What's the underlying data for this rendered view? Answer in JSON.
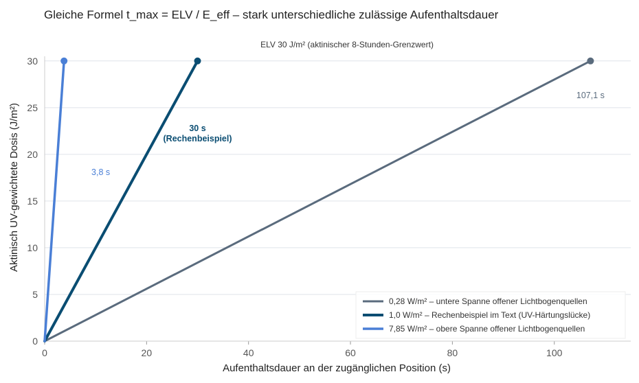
{
  "chart_data": {
    "type": "line",
    "title": "Gleiche Formel t_max = ELV / E_eff – stark unterschiedliche zulässige Aufenthaltsdauer",
    "subtitle": "ELV 30 J/m² (aktinischer 8-Stunden-Grenzwert)",
    "xlabel": "Aufenthaltsdauer an der zugänglichen Position (s)",
    "ylabel": "Aktinisch UV-gewichtete Dosis (J/m²)",
    "xlim": [
      0,
      115
    ],
    "ylim": [
      0,
      30.5
    ],
    "xticks": [
      0,
      20,
      40,
      60,
      80,
      100
    ],
    "yticks": [
      0,
      5,
      10,
      15,
      20,
      25,
      30
    ],
    "grid": "horizontal",
    "legend_position": "bottom-right",
    "series": [
      {
        "name": "0,28 W/m² – untere Spanne offener Lichtbogenquellen",
        "color": "#5a6b7d",
        "x": [
          0,
          107.1
        ],
        "y": [
          0,
          30
        ],
        "annotation": {
          "text": "107,1 s",
          "x": 107.1,
          "y": 26
        }
      },
      {
        "name": "1,0 W/m² – Rechenbeispiel im Text (UV-Härtungslücke)",
        "color": "#0a4d72",
        "x": [
          0,
          30
        ],
        "y": [
          0,
          30
        ],
        "annotation": {
          "text": "30 s",
          "text2": "(Rechenbeispiel)",
          "x": 30,
          "y": 22.5,
          "bold": true
        }
      },
      {
        "name": "7,85 W/m² – obere Spanne offener Lichtbogenquellen",
        "color": "#4a7fd6",
        "x": [
          0,
          3.8
        ],
        "y": [
          0,
          30
        ],
        "annotation": {
          "text": "3,8 s",
          "x": 11,
          "y": 17.8
        }
      }
    ]
  }
}
